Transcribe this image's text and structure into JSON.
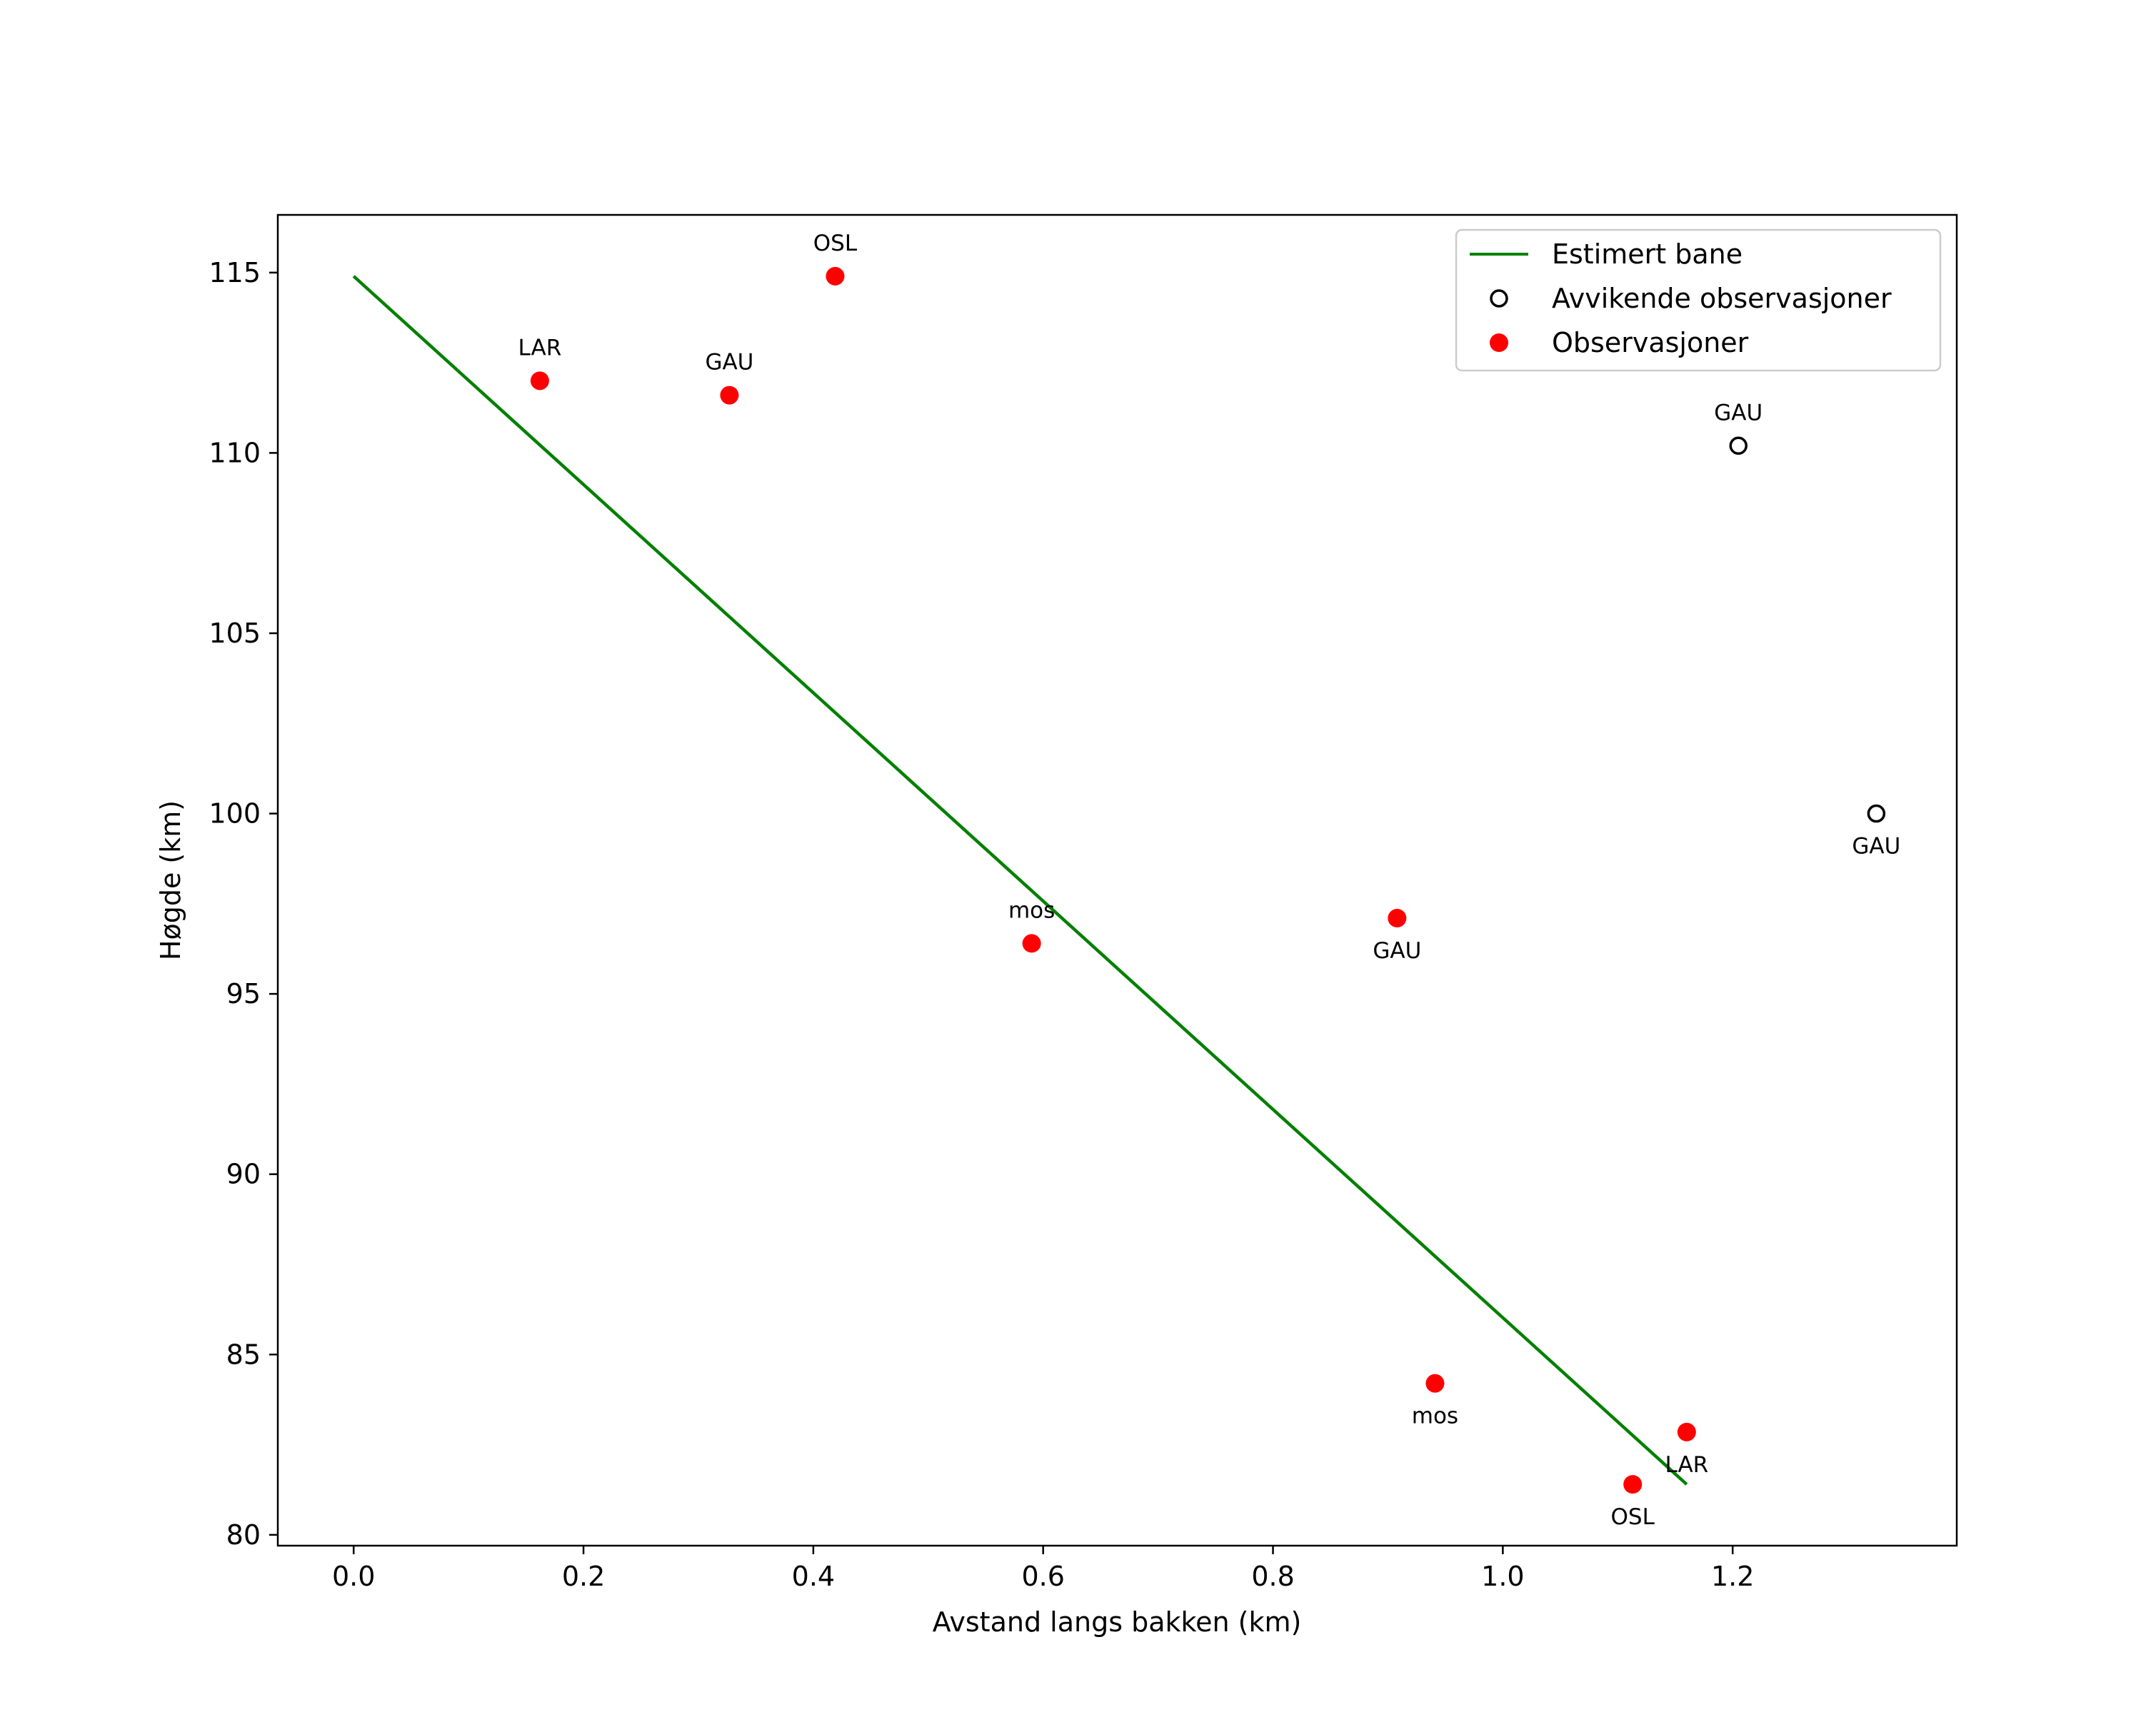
{
  "chart_data": {
    "type": "scatter",
    "title": "",
    "xlabel": "Avstand langs bakken (km)",
    "ylabel": "Høgde (km)",
    "xlim": [
      -0.066,
      1.395
    ],
    "ylim": [
      79.7,
      116.6
    ],
    "xticks": [
      0.0,
      0.2,
      0.4,
      0.6,
      0.8,
      1.0,
      1.2
    ],
    "xtick_labels": [
      "0.0",
      "0.2",
      "0.4",
      "0.6",
      "0.8",
      "1.0",
      "1.2"
    ],
    "yticks": [
      80,
      85,
      90,
      95,
      100,
      105,
      110,
      115
    ],
    "ytick_labels": [
      "80",
      "85",
      "90",
      "95",
      "100",
      "105",
      "110",
      "115"
    ],
    "grid": false,
    "legend_position": "top-right",
    "line": {
      "name": "Estimert bane",
      "color": "#008000",
      "x": [
        0.0,
        1.16
      ],
      "y": [
        114.9,
        81.4
      ]
    },
    "outliers": {
      "name": "Avvikende observasjoner",
      "color": "#000000",
      "points": [
        {
          "x": 1.205,
          "y": 110.2,
          "label": "GAU",
          "label_pos": "above"
        },
        {
          "x": 1.325,
          "y": 100.0,
          "label": "GAU",
          "label_pos": "below"
        }
      ]
    },
    "observations": {
      "name": "Observasjoner",
      "color": "#ff0000",
      "points": [
        {
          "x": 0.162,
          "y": 112.0,
          "label": "LAR",
          "label_pos": "above"
        },
        {
          "x": 0.327,
          "y": 111.6,
          "label": "GAU",
          "label_pos": "above"
        },
        {
          "x": 0.419,
          "y": 114.9,
          "label": "OSL",
          "label_pos": "above"
        },
        {
          "x": 0.59,
          "y": 96.4,
          "label": "mos",
          "label_pos": "above"
        },
        {
          "x": 0.908,
          "y": 97.1,
          "label": "GAU",
          "label_pos": "below"
        },
        {
          "x": 0.941,
          "y": 84.2,
          "label": "mos",
          "label_pos": "below"
        },
        {
          "x": 1.113,
          "y": 81.4,
          "label": "OSL",
          "label_pos": "below"
        },
        {
          "x": 1.16,
          "y": 82.85,
          "label": "LAR",
          "label_pos": "below"
        }
      ]
    }
  }
}
